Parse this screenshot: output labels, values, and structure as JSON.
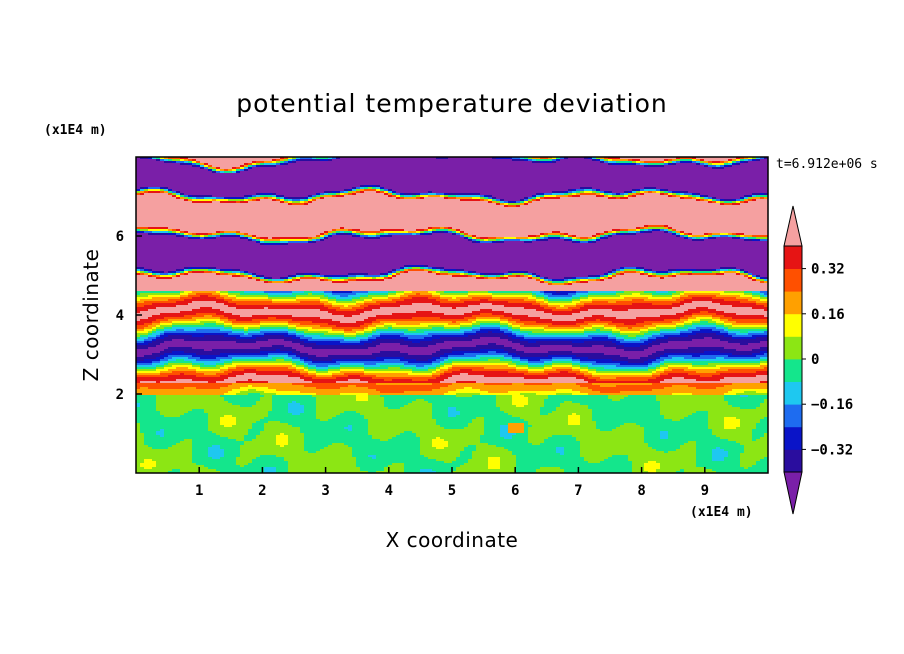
{
  "chart_data": {
    "type": "heatmap",
    "title": "potential temperature deviation",
    "xlabel": "X coordinate",
    "ylabel": "Z coordinate",
    "x_unit": "(x1E4 m)",
    "y_unit": "(x1E4 m)",
    "time_label": "t=6.912e+06 s",
    "xlim": [
      0,
      10
    ],
    "ylim": [
      0,
      8
    ],
    "x_ticks": [
      1,
      2,
      3,
      4,
      5,
      6,
      7,
      8,
      9
    ],
    "y_ticks": [
      2,
      4,
      6
    ],
    "colorbar": {
      "levels": [
        -0.4,
        -0.32,
        -0.24,
        -0.16,
        -0.08,
        0,
        0.08,
        0.16,
        0.24,
        0.32,
        0.4
      ],
      "tick_labels": [
        "0.32",
        "0.16",
        "0",
        "−0.16",
        "−0.32"
      ],
      "tick_values": [
        0.32,
        0.16,
        0,
        -0.16,
        -0.32
      ],
      "colors": [
        "#7a1fa8",
        "#2a0d9e",
        "#0a14c8",
        "#1e6cf0",
        "#1ec8f0",
        "#14e68c",
        "#8ce614",
        "#ffff00",
        "#ffa000",
        "#ff5000",
        "#e61414",
        "#f5a0a0"
      ],
      "extend": "both"
    }
  }
}
